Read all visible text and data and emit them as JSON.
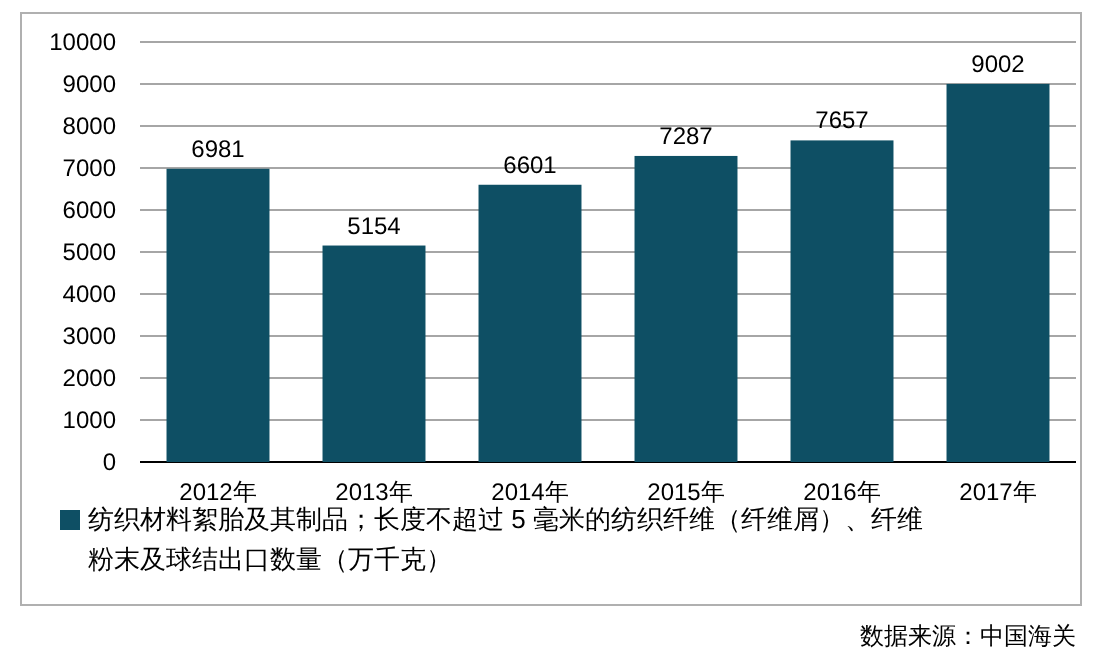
{
  "chart_data": {
    "type": "bar",
    "categories": [
      "2012年",
      "2013年",
      "2014年",
      "2015年",
      "2016年",
      "2017年"
    ],
    "series": [
      {
        "name": "纺织材料絮胎及其制品；长度不超过 5 毫米的纺织纤维（纤维屑）、纤维粉末及球结出口数量（万千克）",
        "color": "#0e4f64",
        "values": [
          6981,
          5154,
          6601,
          7287,
          7657,
          9002
        ]
      }
    ],
    "ylim": [
      0,
      10000
    ],
    "yticks": [
      0,
      1000,
      2000,
      3000,
      4000,
      5000,
      6000,
      7000,
      8000,
      9000,
      10000
    ],
    "grid": "y",
    "legend": "bottom",
    "data_labels": true,
    "annotations": [
      "数据来源：中国海关"
    ]
  }
}
